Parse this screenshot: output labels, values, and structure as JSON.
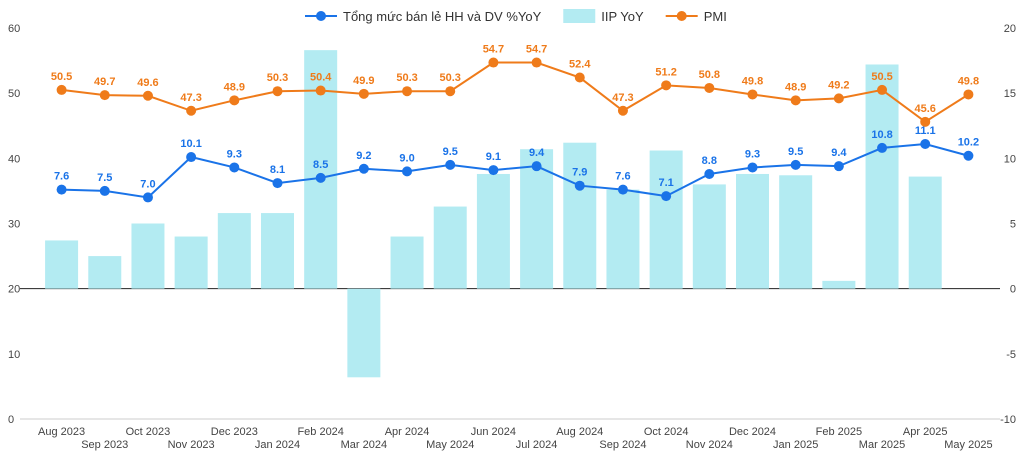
{
  "chart_data": {
    "type": "bar+line",
    "categories": [
      "Aug 2023",
      "Sep 2023",
      "Oct 2023",
      "Nov 2023",
      "Dec 2023",
      "Jan 2024",
      "Feb 2024",
      "Mar 2024",
      "Apr 2024",
      "May 2024",
      "Jun 2024",
      "Jul 2024",
      "Aug 2024",
      "Sep 2024",
      "Oct 2024",
      "Nov 2024",
      "Dec 2024",
      "Jan 2025",
      "Feb 2025",
      "Mar 2025",
      "Apr 2025",
      "May 2025"
    ],
    "left_axis": {
      "range": [
        0,
        60
      ],
      "ticks": [
        0,
        10,
        20,
        30,
        40,
        50,
        60
      ]
    },
    "right_axis": {
      "range": [
        -10,
        20
      ],
      "ticks": [
        -10,
        -5,
        0,
        5,
        10,
        15,
        20
      ]
    },
    "grid": false,
    "legend_position": "top",
    "series": [
      {
        "name": "Tổng mức bán lẻ HH và DV %YoY",
        "kind": "line",
        "axis": "right",
        "color": "#1a73e8",
        "label_color": "#1a73e8",
        "values": [
          7.6,
          7.5,
          7.0,
          10.1,
          9.3,
          8.1,
          8.5,
          9.2,
          9.0,
          9.5,
          9.1,
          9.4,
          7.9,
          7.6,
          7.1,
          8.8,
          9.3,
          9.5,
          9.4,
          10.8,
          11.1,
          10.2
        ],
        "labels": [
          "7.6",
          "7.5",
          "7.0",
          "10.1",
          "9.3",
          "8.1",
          "8.5",
          "9.2",
          "9.0",
          "9.5",
          "9.1",
          "9.4",
          "7.9",
          "7.6",
          "7.1",
          "8.8",
          "9.3",
          "9.5",
          "9.4",
          "10.8",
          "11.1",
          "10.2"
        ]
      },
      {
        "name": "IIP YoY",
        "kind": "bar",
        "axis": "right",
        "color": "#b3ebf2",
        "values": [
          3.7,
          2.5,
          5.0,
          4.0,
          5.8,
          5.8,
          18.3,
          -6.8,
          4.0,
          6.3,
          8.8,
          10.7,
          11.2,
          7.6,
          10.6,
          8.0,
          8.8,
          8.7,
          0.6,
          17.2,
          8.6,
          null
        ]
      },
      {
        "name": "PMI",
        "kind": "line",
        "axis": "left",
        "color": "#ef7b1a",
        "label_color": "#ef7b1a",
        "values": [
          50.5,
          49.7,
          49.6,
          47.3,
          48.9,
          50.3,
          50.4,
          49.9,
          50.3,
          50.3,
          54.7,
          54.7,
          52.4,
          47.3,
          51.2,
          50.8,
          49.8,
          48.9,
          49.2,
          50.5,
          45.6,
          49.8
        ],
        "labels": [
          "50.5",
          "49.7",
          "49.6",
          "47.3",
          "48.9",
          "50.3",
          "50.4",
          "49.9",
          "50.3",
          "50.3",
          "54.7",
          "54.7",
          "52.4",
          "47.3",
          "51.2",
          "50.8",
          "49.8",
          "48.9",
          "49.2",
          "50.5",
          "45.6",
          "49.8"
        ]
      }
    ]
  }
}
